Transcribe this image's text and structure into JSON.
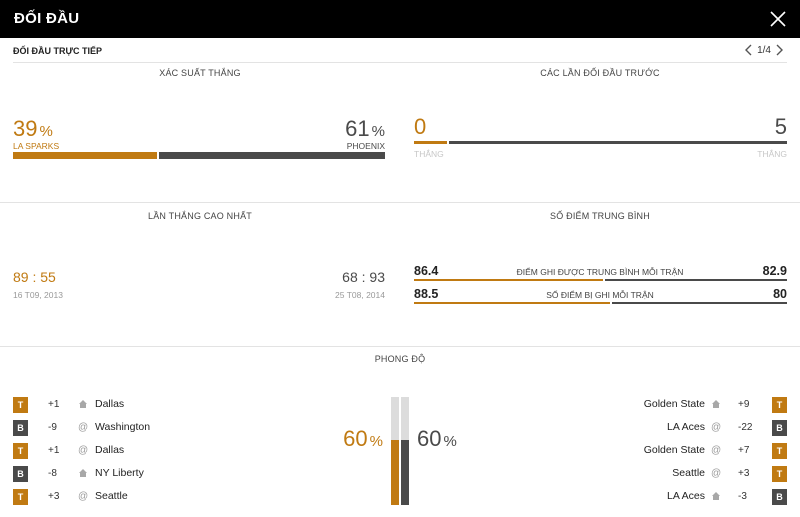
{
  "header": {
    "title": "ĐỐI ĐẦU"
  },
  "subheader": {
    "label": "ĐỐI ĐẦU TRỰC TIẾP",
    "page": "1/4"
  },
  "colors": {
    "home": "#c07a12",
    "away": "#4a4a4a"
  },
  "win_probability": {
    "title": "XÁC SUẤT THẮNG",
    "home": {
      "value": "39",
      "pct": "%",
      "team": "LA SPARKS",
      "share": 0.39
    },
    "away": {
      "value": "61",
      "pct": "%",
      "team": "PHOENIX",
      "share": 0.61
    }
  },
  "previous_meetings": {
    "title": "CÁC LẦN ĐỐI ĐẦU TRƯỚC",
    "home": {
      "wins": "0",
      "label": "THẮNG"
    },
    "away": {
      "wins": "5",
      "label": "THẮNG"
    }
  },
  "biggest_win": {
    "title": "LẦN THẮNG CAO NHẤT",
    "home": {
      "score_a": "89",
      "sep": ":",
      "score_b": "55",
      "date": "16 T09, 2013"
    },
    "away": {
      "score_a": "68",
      "sep": ":",
      "score_b": "93",
      "date": "25 T08, 2014"
    }
  },
  "average_points": {
    "title": "SỐ ĐIỂM TRUNG BÌNH",
    "rows": [
      {
        "label": "ĐIỂM GHI ĐƯỢC TRUNG BÌNH MỖI TRẬN",
        "home": "86.4",
        "away": "82.9"
      },
      {
        "label": "SỐ ĐIỂM BỊ GHI MỖI TRẬN",
        "home": "88.5",
        "away": "80"
      }
    ]
  },
  "form": {
    "title": "PHONG ĐỘ",
    "home_pct": {
      "value": "60",
      "pct": "%",
      "share": 0.6
    },
    "away_pct": {
      "value": "60",
      "pct": "%",
      "share": 0.6
    },
    "home_games": [
      {
        "result": "T",
        "diff": "+1",
        "venue": "home",
        "opponent": "Dallas"
      },
      {
        "result": "B",
        "diff": "-9",
        "venue": "@",
        "opponent": "Washington"
      },
      {
        "result": "T",
        "diff": "+1",
        "venue": "@",
        "opponent": "Dallas"
      },
      {
        "result": "B",
        "diff": "-8",
        "venue": "home",
        "opponent": "NY Liberty"
      },
      {
        "result": "T",
        "diff": "+3",
        "venue": "@",
        "opponent": "Seattle"
      }
    ],
    "away_games": [
      {
        "result": "T",
        "diff": "+9",
        "venue": "home",
        "opponent": "Golden State"
      },
      {
        "result": "B",
        "diff": "-22",
        "venue": "@",
        "opponent": "LA Aces"
      },
      {
        "result": "T",
        "diff": "+7",
        "venue": "@",
        "opponent": "Golden State"
      },
      {
        "result": "T",
        "diff": "+3",
        "venue": "@",
        "opponent": "Seattle"
      },
      {
        "result": "B",
        "diff": "-3",
        "venue": "home",
        "opponent": "LA Aces"
      }
    ]
  }
}
